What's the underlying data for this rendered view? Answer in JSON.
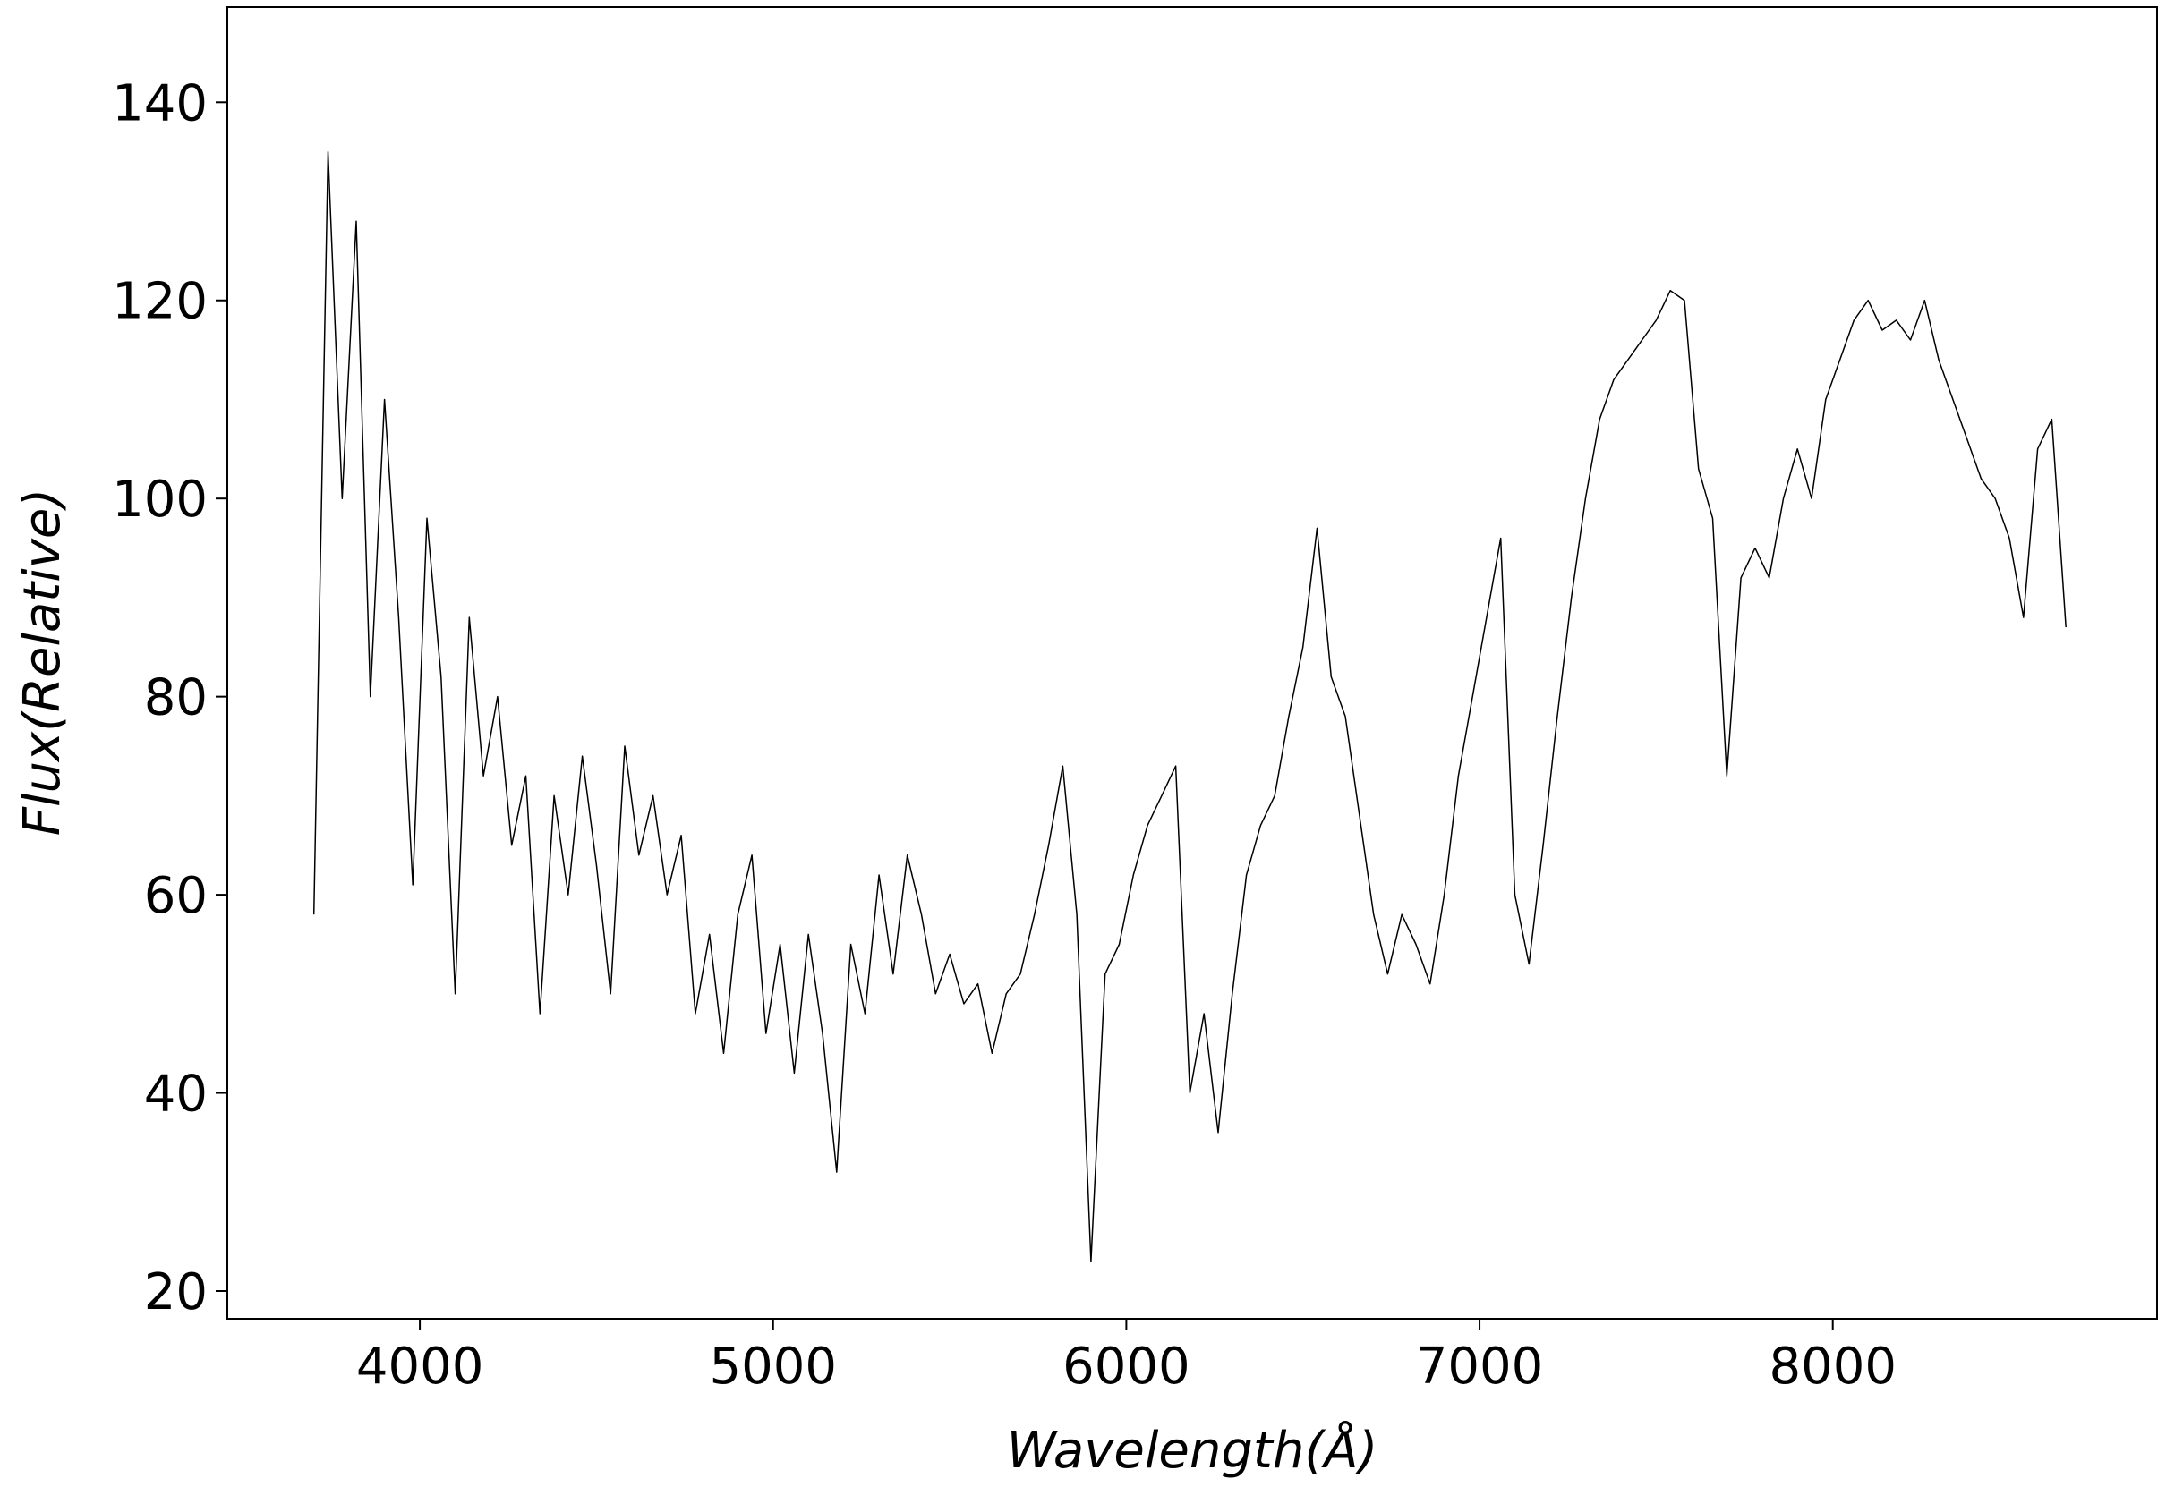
{
  "chart_data": {
    "type": "line",
    "xlabel": "Wavelength(Å)",
    "ylabel": "Flux(Relative)",
    "x": [
      3700,
      3740,
      3780,
      3820,
      3860,
      3900,
      3940,
      3980,
      4020,
      4060,
      4100,
      4140,
      4180,
      4220,
      4260,
      4300,
      4340,
      4380,
      4420,
      4460,
      4500,
      4540,
      4580,
      4620,
      4660,
      4700,
      4740,
      4780,
      4820,
      4860,
      4900,
      4940,
      4980,
      5020,
      5060,
      5100,
      5140,
      5180,
      5220,
      5260,
      5300,
      5340,
      5380,
      5420,
      5460,
      5500,
      5540,
      5580,
      5620,
      5660,
      5700,
      5740,
      5780,
      5820,
      5860,
      5900,
      5940,
      5980,
      6020,
      6060,
      6100,
      6140,
      6180,
      6220,
      6260,
      6300,
      6340,
      6380,
      6420,
      6460,
      6500,
      6540,
      6580,
      6620,
      6660,
      6700,
      6740,
      6780,
      6820,
      6860,
      6900,
      6940,
      6980,
      7020,
      7060,
      7100,
      7140,
      7180,
      7220,
      7260,
      7300,
      7340,
      7380,
      7420,
      7460,
      7500,
      7540,
      7580,
      7620,
      7660,
      7700,
      7740,
      7780,
      7820,
      7860,
      7900,
      7940,
      7980,
      8020,
      8060,
      8100,
      8140,
      8180,
      8220,
      8260,
      8300,
      8340,
      8380,
      8420,
      8460,
      8500,
      8540,
      8580,
      8620,
      8660
    ],
    "series": [
      {
        "color": "#000000",
        "values": [
          58,
          135,
          100,
          128,
          80,
          110,
          88,
          61,
          98,
          82,
          50,
          88,
          72,
          80,
          65,
          72,
          48,
          70,
          60,
          74,
          63,
          50,
          75,
          64,
          70,
          60,
          66,
          48,
          56,
          44,
          58,
          64,
          46,
          55,
          42,
          56,
          46,
          32,
          55,
          48,
          62,
          52,
          64,
          58,
          50,
          54,
          49,
          51,
          44,
          50,
          52,
          58,
          65,
          73,
          58,
          23,
          52,
          55,
          62,
          67,
          70,
          73,
          40,
          48,
          36,
          50,
          62,
          67,
          70,
          78,
          85,
          97,
          82,
          78,
          68,
          58,
          52,
          58,
          55,
          51,
          60,
          72,
          80,
          88,
          96,
          60,
          53,
          65,
          78,
          90,
          100,
          108,
          112,
          114,
          116,
          118,
          121,
          120,
          103,
          98,
          72,
          92,
          95,
          92,
          100,
          105,
          100,
          110,
          114,
          118,
          120,
          117,
          118,
          116,
          120,
          114,
          110,
          106,
          102,
          100,
          96,
          88,
          105,
          108,
          87
        ]
      }
    ],
    "xlim": [
      3455,
      8918
    ],
    "ylim": [
      17.2,
      149.6
    ],
    "xticks": [
      4000,
      5000,
      6000,
      7000,
      8000
    ],
    "yticks": [
      20,
      40,
      60,
      80,
      100,
      120,
      140
    ]
  }
}
